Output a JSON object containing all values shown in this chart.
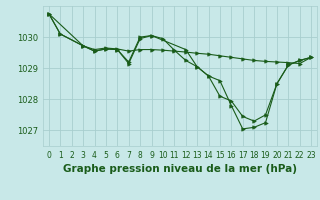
{
  "background_color": "#c8e8e8",
  "grid_color": "#a8cece",
  "line_color": "#1a5c1a",
  "title": "Graphe pression niveau de la mer (hPa)",
  "title_fontsize": 7.5,
  "tick_fontsize": 5.5,
  "ylim": [
    1026.5,
    1031.0
  ],
  "yticks": [
    1027,
    1028,
    1029,
    1030
  ],
  "xticks": [
    0,
    1,
    2,
    3,
    4,
    5,
    6,
    7,
    8,
    9,
    10,
    11,
    12,
    13,
    14,
    15,
    16,
    17,
    18,
    19,
    20,
    21,
    22,
    23
  ],
  "line1_x": [
    0,
    1,
    3,
    4,
    5,
    6,
    7,
    8,
    9,
    10,
    11,
    12,
    13,
    14,
    15,
    16,
    17,
    18,
    19,
    20,
    21,
    22,
    23
  ],
  "line1_y": [
    1030.75,
    1030.1,
    1029.72,
    1029.6,
    1029.65,
    1029.62,
    1029.55,
    1029.6,
    1029.6,
    1029.58,
    1029.55,
    1029.52,
    1029.48,
    1029.45,
    1029.4,
    1029.35,
    1029.3,
    1029.25,
    1029.22,
    1029.2,
    1029.18,
    1029.15,
    1029.35
  ],
  "line2_x": [
    0,
    1,
    3,
    4,
    5,
    6,
    7,
    8,
    9,
    10,
    11,
    12,
    13,
    14,
    15,
    16,
    17,
    18,
    19,
    20,
    21,
    22,
    23
  ],
  "line2_y": [
    1030.75,
    1030.1,
    1029.72,
    1029.55,
    1029.62,
    1029.6,
    1029.2,
    1030.0,
    1030.05,
    1029.95,
    1029.58,
    1029.25,
    1029.05,
    1028.75,
    1028.1,
    1027.95,
    1027.45,
    1027.3,
    1027.5,
    1028.5,
    1029.1,
    1029.25,
    1029.35
  ],
  "line3_x": [
    0,
    3,
    4,
    5,
    6,
    7,
    8,
    9,
    12,
    13,
    14,
    15,
    16,
    17,
    18,
    19,
    20,
    21,
    22,
    23
  ],
  "line3_y": [
    1030.75,
    1029.72,
    1029.55,
    1029.62,
    1029.6,
    1029.15,
    1029.95,
    1030.05,
    1029.6,
    1029.05,
    1028.75,
    1028.6,
    1027.8,
    1027.05,
    1027.1,
    1027.25,
    1028.5,
    1029.1,
    1029.25,
    1029.35
  ]
}
